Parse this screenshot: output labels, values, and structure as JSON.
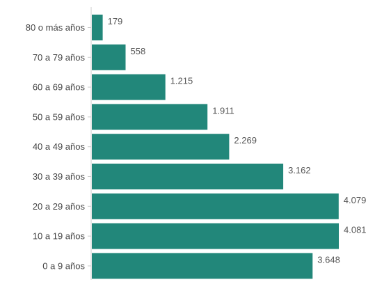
{
  "chart_data": {
    "type": "bar",
    "orientation": "horizontal",
    "title": "",
    "xlabel": "",
    "ylabel": "",
    "categories": [
      "80 o más años",
      "70 a 79 años",
      "60 a 69 años",
      "50 a 59 años",
      "40 a 49 años",
      "30 a 39 años",
      "20 a 29 años",
      "10 a 19 años",
      "0 a 9 años"
    ],
    "values": [
      179,
      558,
      1215,
      1911,
      2269,
      3162,
      4079,
      4081,
      3648
    ],
    "value_labels": [
      "179",
      "558",
      "1.215",
      "1.911",
      "2.269",
      "3.162",
      "4.079",
      "4.081",
      "3.648"
    ],
    "xlim": [
      0,
      4081
    ],
    "grid": false,
    "legend": "none",
    "bar_color": "#22877a"
  }
}
